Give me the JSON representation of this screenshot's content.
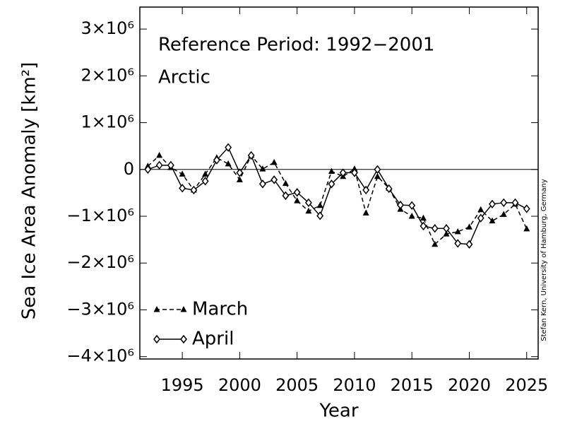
{
  "chart_data": {
    "type": "line",
    "title": "Reference Period: 1992−2001",
    "subtitle": "Arctic",
    "x_label": "Year",
    "y_label": "Sea Ice Area Anomaly [km²]",
    "credit": "Stefan Kern, University of Hamburg, Germany",
    "x": [
      1992,
      1993,
      1994,
      1995,
      1996,
      1997,
      1998,
      1999,
      2000,
      2001,
      2002,
      2003,
      2004,
      2005,
      2006,
      2007,
      2008,
      2009,
      2010,
      2011,
      2012,
      2013,
      2014,
      2015,
      2016,
      2017,
      2018,
      2019,
      2020,
      2021,
      2022,
      2023,
      2024,
      2025
    ],
    "series": [
      {
        "name": "March",
        "color": "#000000",
        "dash": true,
        "marker": "triangle",
        "values": [
          70000,
          300000,
          40000,
          -100000,
          -440000,
          -100000,
          250000,
          120000,
          -220000,
          300000,
          10000,
          150000,
          -300000,
          -670000,
          -890000,
          -770000,
          -40000,
          -150000,
          10000,
          -930000,
          -150000,
          -400000,
          -850000,
          -1000000,
          -1040000,
          -1600000,
          -1380000,
          -1330000,
          -1230000,
          -860000,
          -1100000,
          -960000,
          -740000,
          -1270000
        ]
      },
      {
        "name": "April",
        "color": "#000000",
        "dash": false,
        "marker": "diamond",
        "values": [
          0,
          90000,
          90000,
          -400000,
          -440000,
          -250000,
          200000,
          470000,
          -70000,
          300000,
          -310000,
          -220000,
          -560000,
          -490000,
          -710000,
          -990000,
          -310000,
          -70000,
          -70000,
          -440000,
          0,
          -410000,
          -760000,
          -770000,
          -1210000,
          -1260000,
          -1260000,
          -1580000,
          -1600000,
          -1040000,
          -740000,
          -710000,
          -710000,
          -840000
        ]
      }
    ],
    "reference_line": 0,
    "xlim": [
      1991.3,
      2026
    ],
    "xticks": [
      1995,
      2000,
      2005,
      2010,
      2015,
      2020,
      2025
    ],
    "ylim": [
      -4050000,
      3470000
    ],
    "yticks": [
      {
        "value": -4000000,
        "label": "−4×10⁶"
      },
      {
        "value": -3000000,
        "label": "−3×10⁶"
      },
      {
        "value": -2000000,
        "label": "−2×10⁶"
      },
      {
        "value": -1000000,
        "label": "−1×10⁶"
      },
      0,
      {
        "value": 1000000,
        "label": "1×10⁶"
      },
      {
        "value": 2000000,
        "label": "2×10⁶"
      },
      {
        "value": 3000000,
        "label": "3×10⁶"
      }
    ],
    "legend": "lower left"
  }
}
